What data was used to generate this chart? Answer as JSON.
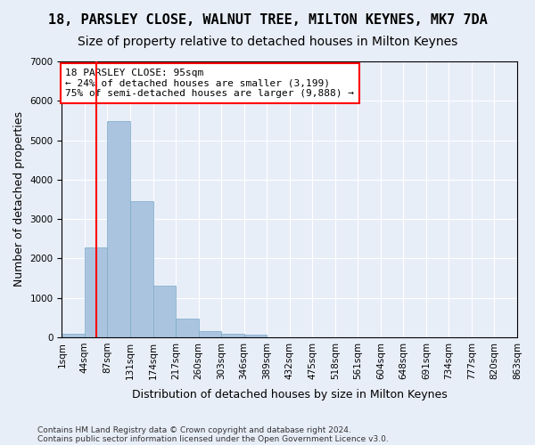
{
  "title": "18, PARSLEY CLOSE, WALNUT TREE, MILTON KEYNES, MK7 7DA",
  "subtitle": "Size of property relative to detached houses in Milton Keynes",
  "xlabel": "Distribution of detached houses by size in Milton Keynes",
  "ylabel": "Number of detached properties",
  "footnote1": "Contains HM Land Registry data © Crown copyright and database right 2024.",
  "footnote2": "Contains public sector information licensed under the Open Government Licence v3.0.",
  "bar_values": [
    80,
    2280,
    5480,
    3450,
    1310,
    470,
    155,
    90,
    65,
    0,
    0,
    0,
    0,
    0,
    0,
    0,
    0,
    0,
    0,
    0
  ],
  "bin_labels": [
    "1sqm",
    "44sqm",
    "87sqm",
    "131sqm",
    "174sqm",
    "217sqm",
    "260sqm",
    "303sqm",
    "346sqm",
    "389sqm",
    "432sqm",
    "475sqm",
    "518sqm",
    "561sqm",
    "604sqm",
    "648sqm",
    "691sqm",
    "734sqm",
    "777sqm",
    "820sqm",
    "863sqm"
  ],
  "bar_color": "#aac4e0",
  "bar_edge_color": "#7aaac8",
  "vline_x": 1.5,
  "vline_color": "red",
  "annotation_text": "18 PARSLEY CLOSE: 95sqm\n← 24% of detached houses are smaller (3,199)\n75% of semi-detached houses are larger (9,888) →",
  "annotation_box_color": "white",
  "annotation_box_edge": "red",
  "ylim": [
    0,
    7000
  ],
  "yticks": [
    0,
    1000,
    2000,
    3000,
    4000,
    5000,
    6000,
    7000
  ],
  "bg_color": "#e8eef8",
  "plot_bg_color": "#e8eef8",
  "grid_color": "white",
  "title_fontsize": 11,
  "subtitle_fontsize": 10,
  "xlabel_fontsize": 9,
  "ylabel_fontsize": 9,
  "tick_fontsize": 7.5,
  "annotation_fontsize": 8
}
